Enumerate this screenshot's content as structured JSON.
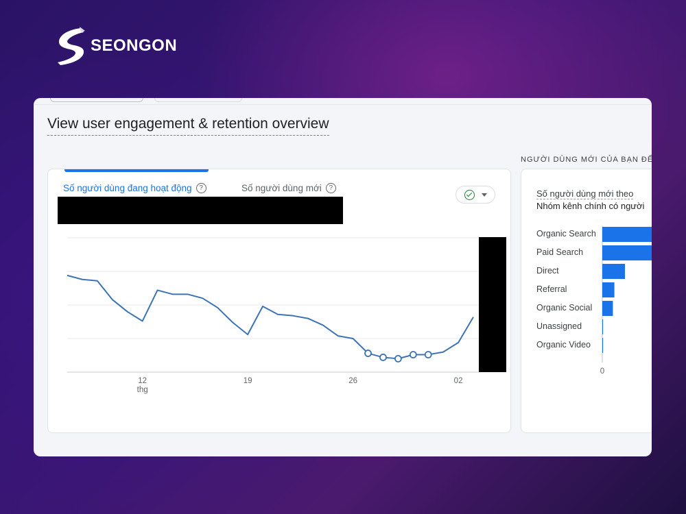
{
  "brand": {
    "name": "SEONGON"
  },
  "page": {
    "title": "View user engagement & retention overview"
  },
  "left_panel": {
    "active_tab": "Số người dùng đang hoạt động",
    "inactive_tab": "Số người dùng mới",
    "help_glyph": "?",
    "compare_icon": "check-circle-icon",
    "x_ticks": [
      "12",
      "19",
      "26",
      "02"
    ],
    "x_sub": "thg",
    "line_color": "#3c73b5"
  },
  "right_panel": {
    "header": "NGƯỜI DÙNG MỚI CỦA BẠN ĐẾN",
    "title_line1": "Số người dùng mới theo",
    "title_line2": "Nhóm kênh chính có người",
    "zero_label": "0"
  },
  "chart_data": [
    {
      "type": "line",
      "x_ticks": [
        "12",
        "19",
        "26",
        "02"
      ],
      "x_sub_label": "thg",
      "series": [
        {
          "values": [
            72,
            69,
            68,
            54,
            45,
            38,
            61,
            58,
            58,
            55,
            48,
            37,
            28,
            49,
            43,
            42,
            40,
            35,
            27,
            25,
            14,
            11,
            10,
            13,
            13,
            15,
            22,
            41
          ],
          "highlight_points": [
            20,
            21,
            22,
            23,
            24
          ]
        }
      ],
      "ylim": [
        0,
        100
      ]
    },
    {
      "type": "bar",
      "orientation": "horizontal",
      "categories": [
        "Organic Search",
        "Paid Search",
        "Direct",
        "Referral",
        "Organic Social",
        "Unassigned",
        "Organic Video"
      ],
      "values": [
        100,
        100,
        30,
        16,
        14,
        1,
        1
      ],
      "bar_color": "#1a73e8"
    }
  ]
}
